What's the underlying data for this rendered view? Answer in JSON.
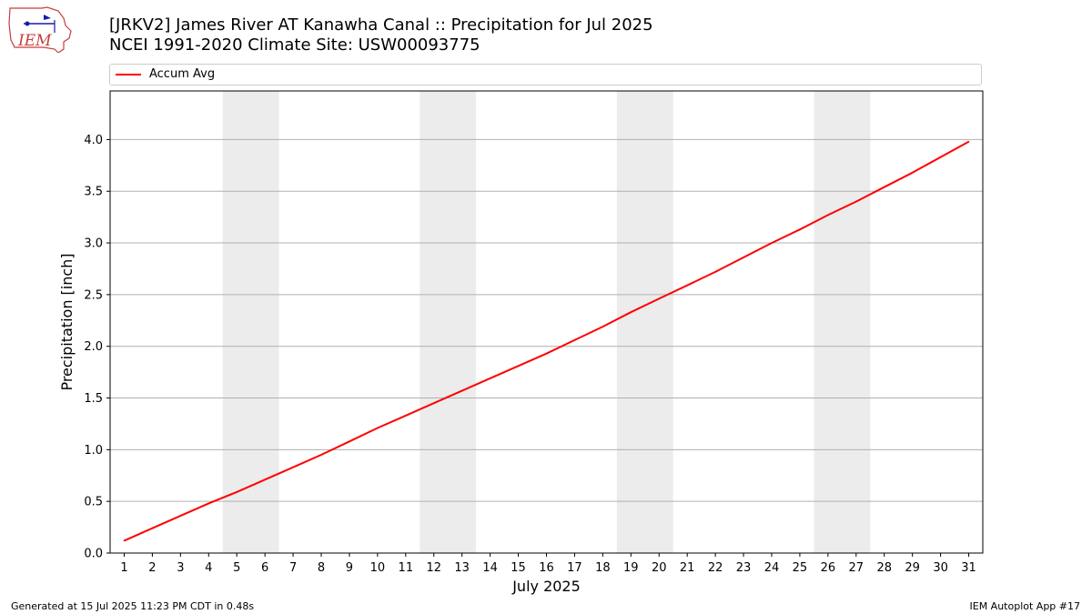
{
  "header": {
    "title_line1": "[JRKV2] James River  AT Kanawha Canal :: Precipitation for Jul 2025",
    "title_line2": "NCEI 1991-2020 Climate Site: USW00093775"
  },
  "logo": {
    "text": "IEM",
    "icon": "iem-logo-icon"
  },
  "footer": {
    "generated": "Generated at 15 Jul 2025 11:23 PM CDT in 0.48s",
    "app": "IEM Autoplot App #17"
  },
  "colors": {
    "series": "#ff0000",
    "weekend_band": "#ececec",
    "grid": "#b0b0b0"
  },
  "chart_data": {
    "type": "line",
    "title": "[JRKV2] James River  AT Kanawha Canal :: Precipitation for Jul 2025",
    "subtitle": "NCEI 1991-2020 Climate Site: USW00093775",
    "xlabel": "July 2025",
    "ylabel": "Precipitation [inch]",
    "xlim": [
      0.5,
      31.5
    ],
    "ylim": [
      0,
      4.47
    ],
    "yticks": [
      0.0,
      0.5,
      1.0,
      1.5,
      2.0,
      2.5,
      3.0,
      3.5,
      4.0
    ],
    "ytick_labels": [
      "0.0",
      "0.5",
      "1.0",
      "1.5",
      "2.0",
      "2.5",
      "3.0",
      "3.5",
      "4.0"
    ],
    "xticks": [
      1,
      2,
      3,
      4,
      5,
      6,
      7,
      8,
      9,
      10,
      11,
      12,
      13,
      14,
      15,
      16,
      17,
      18,
      19,
      20,
      21,
      22,
      23,
      24,
      25,
      26,
      27,
      28,
      29,
      30,
      31
    ],
    "grid": "horizontal",
    "legend_position": "top",
    "weekend_bands": [
      [
        4.5,
        6.5
      ],
      [
        11.5,
        13.5
      ],
      [
        18.5,
        20.5
      ],
      [
        25.5,
        27.5
      ]
    ],
    "series": [
      {
        "name": "Accum Avg",
        "color": "#ff0000",
        "x": [
          1,
          2,
          3,
          4,
          5,
          6,
          7,
          8,
          9,
          10,
          11,
          12,
          13,
          14,
          15,
          16,
          17,
          18,
          19,
          20,
          21,
          22,
          23,
          24,
          25,
          26,
          27,
          28,
          29,
          30,
          31
        ],
        "values": [
          0.12,
          0.24,
          0.36,
          0.48,
          0.59,
          0.71,
          0.83,
          0.95,
          1.08,
          1.21,
          1.33,
          1.45,
          1.57,
          1.69,
          1.81,
          1.93,
          2.06,
          2.19,
          2.33,
          2.46,
          2.59,
          2.72,
          2.86,
          3.0,
          3.13,
          3.27,
          3.4,
          3.54,
          3.68,
          3.83,
          3.98
        ]
      }
    ]
  }
}
